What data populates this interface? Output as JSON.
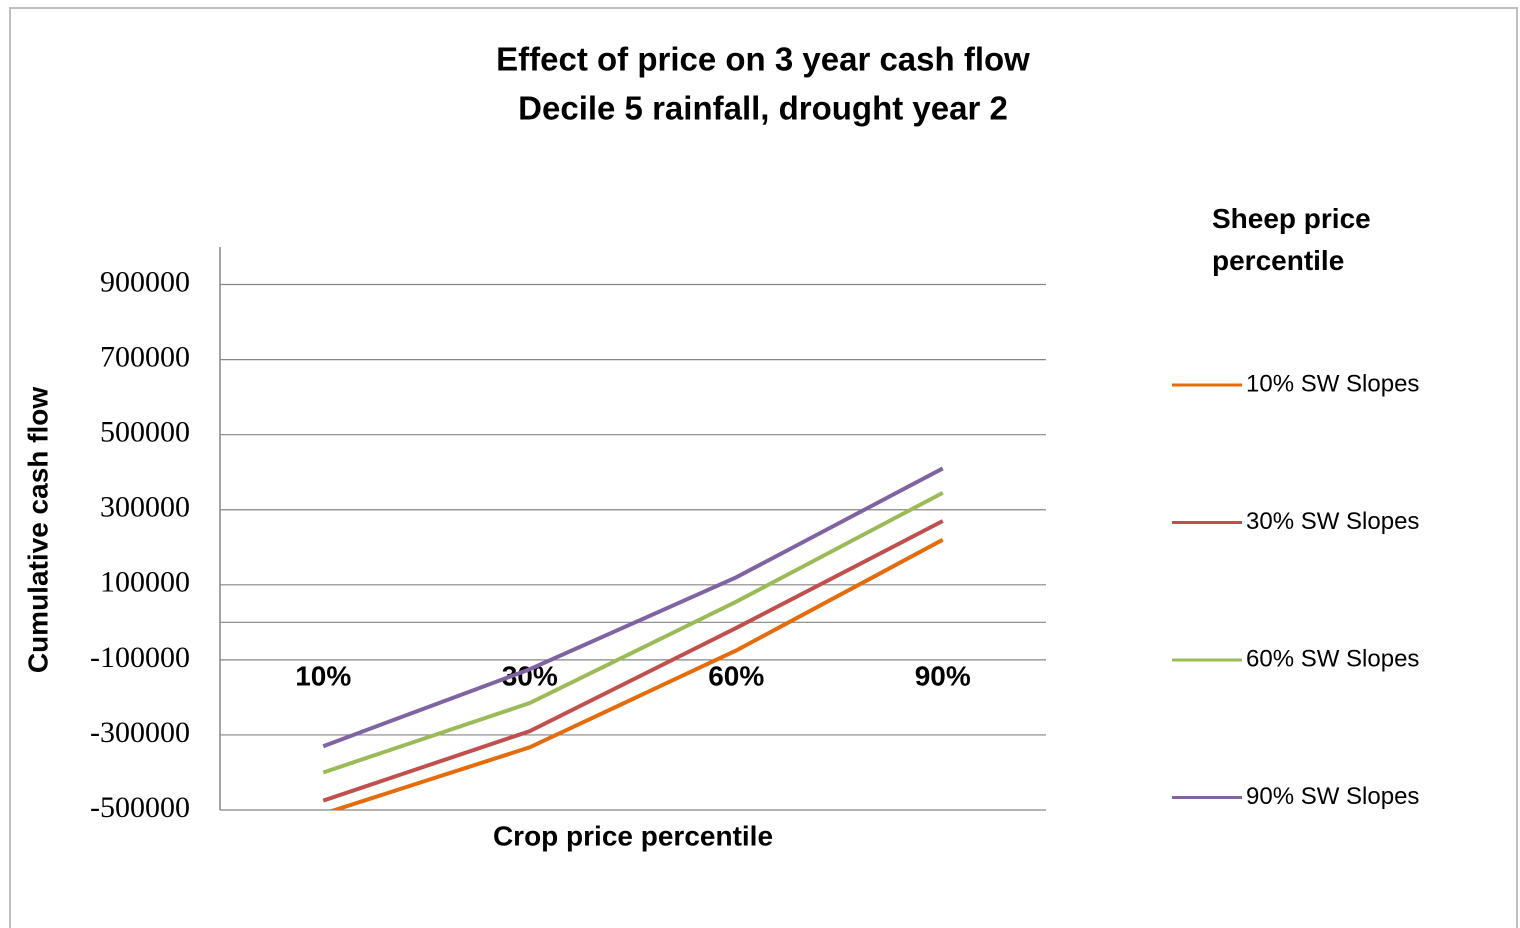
{
  "chart_data": {
    "type": "line",
    "title": "Effect of price on 3 year cash flow",
    "subtitle": "Decile 5 rainfall, drought year 2",
    "x_label": "Crop price percentile",
    "y_label": "Cumulative cash flow",
    "legend_title": "Sheep price percentile",
    "categories": [
      "10%",
      "30%",
      "60%",
      "90%"
    ],
    "series": [
      {
        "name": "10% SW Slopes",
        "color": "#e46c0a",
        "values": [
          -510000,
          -333000,
          -75000,
          220000
        ]
      },
      {
        "name": "30% SW Slopes",
        "color": "#c0504d",
        "values": [
          -475000,
          -290000,
          -15000,
          270000
        ]
      },
      {
        "name": "60% SW Slopes",
        "color": "#9bbb59",
        "values": [
          -400000,
          -215000,
          55000,
          345000
        ]
      },
      {
        "name": "90% SW Slopes",
        "color": "#8064a2",
        "values": [
          -330000,
          -125000,
          120000,
          410000
        ]
      }
    ],
    "ylim": [
      -500000,
      1000000
    ],
    "yticks": [
      -500000,
      -300000,
      -100000,
      100000,
      300000,
      500000,
      700000,
      900000
    ],
    "grid": true,
    "legend": "right"
  }
}
